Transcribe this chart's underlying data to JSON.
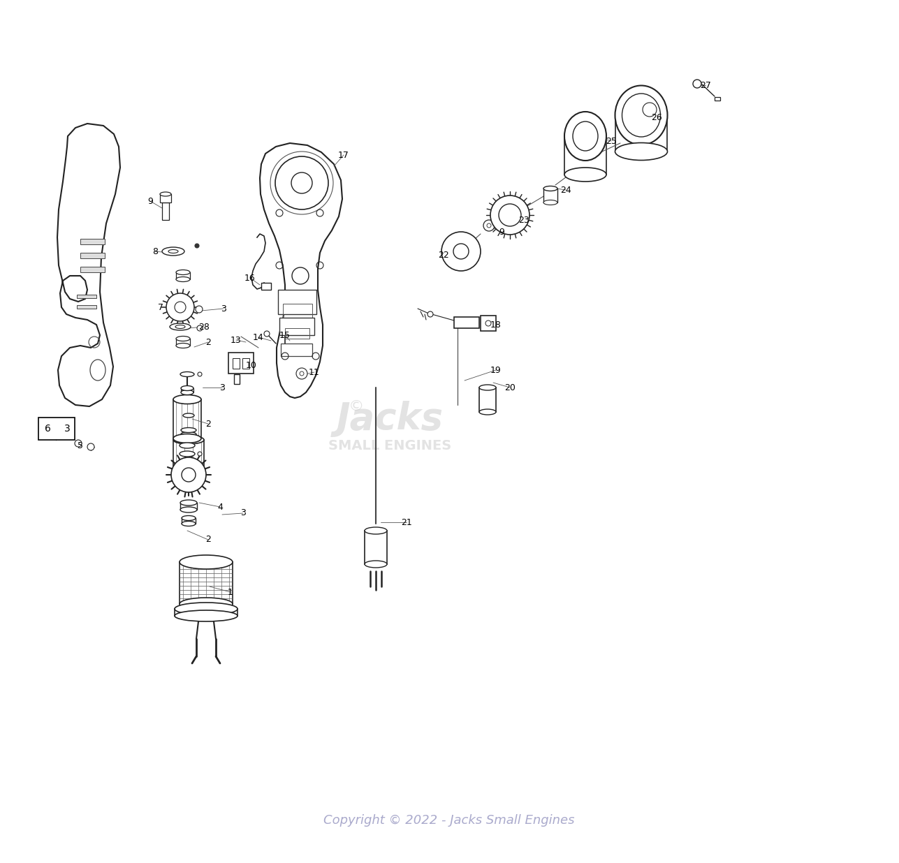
{
  "background_color": "#ffffff",
  "copyright_text": "Copyright © 2022 - Jacks Small Engines",
  "copyright_color": "#aaaacc",
  "fig_width": 12.87,
  "fig_height": 12.36
}
